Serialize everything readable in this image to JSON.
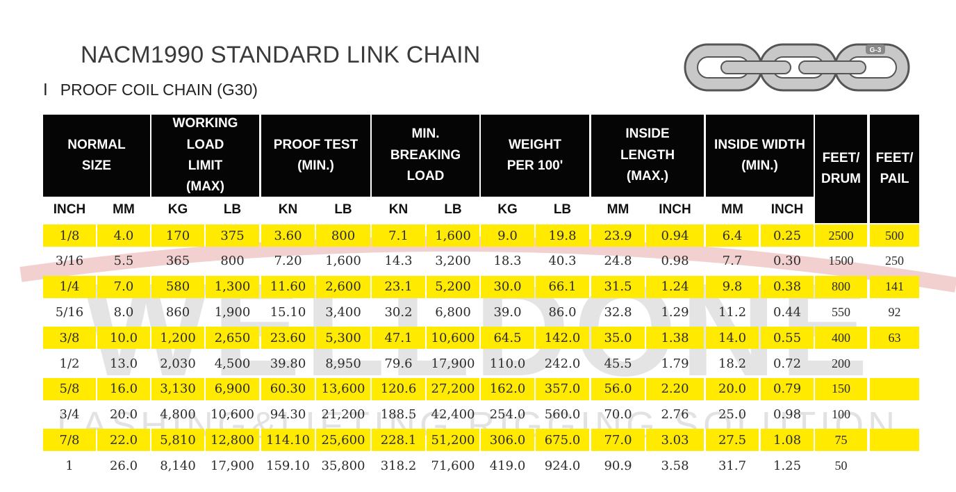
{
  "title": "NACM1990 STANDARD LINK CHAIN",
  "subtitle": {
    "numeral": "Ⅰ",
    "text": "PROOF COIL CHAIN (G30)"
  },
  "chain_badge": "G-3",
  "watermark": {
    "brand": "WELLDONE",
    "tagline": "LASHING&LIFTING RIGGING SOLUTION"
  },
  "headers": [
    {
      "label": "NORMAL\nSIZE"
    },
    {
      "label": "WORKING\nLOAD\nLIMIT\n(MAX)"
    },
    {
      "label": "PROOF TEST\n(MIN.)"
    },
    {
      "label": "MIN.\nBREAKING\nLOAD"
    },
    {
      "label": "WEIGHT\nPER  100'"
    },
    {
      "label": "INSIDE\nLENGTH\n(MAX.)"
    },
    {
      "label": "INSIDE WIDTH\n(MIN.)"
    },
    {
      "label": "FEET/\nDRUM"
    },
    {
      "label": "FEET/\nPAIL"
    }
  ],
  "units": [
    "INCH",
    "MM",
    "KG",
    "LB",
    "KN",
    "LB",
    "KN",
    "LB",
    "KG",
    "LB",
    "MM",
    "INCH",
    "MM",
    "INCH"
  ],
  "rows": [
    [
      "1/8",
      "4.0",
      "170",
      "375",
      "3.60",
      "800",
      "7.1",
      "1,600",
      "9.0",
      "19.8",
      "23.9",
      "0.94",
      "6.4",
      "0.25",
      "2500",
      "500"
    ],
    [
      "3/16",
      "5.5",
      "365",
      "800",
      "7.20",
      "1,600",
      "14.3",
      "3,200",
      "18.3",
      "40.3",
      "24.8",
      "0.98",
      "7.7",
      "0.30",
      "1500",
      "250"
    ],
    [
      "1/4",
      "7.0",
      "580",
      "1,300",
      "11.60",
      "2,600",
      "23.1",
      "5,200",
      "30.0",
      "66.1",
      "31.5",
      "1.24",
      "9.8",
      "0.38",
      "800",
      "141"
    ],
    [
      "5/16",
      "8.0",
      "860",
      "1,900",
      "15.10",
      "3,400",
      "30.2",
      "6,800",
      "39.0",
      "86.0",
      "32.8",
      "1.29",
      "11.2",
      "0.44",
      "550",
      "92"
    ],
    [
      "3/8",
      "10.0",
      "1,200",
      "2,650",
      "23.60",
      "5,300",
      "47.1",
      "10,600",
      "64.5",
      "142.0",
      "35.0",
      "1.38",
      "14.0",
      "0.55",
      "400",
      "63"
    ],
    [
      "1/2",
      "13.0",
      "2,030",
      "4,500",
      "39.80",
      "8,950",
      "79.6",
      "17,900",
      "110.0",
      "242.0",
      "45.5",
      "1.79",
      "18.2",
      "0.72",
      "200",
      ""
    ],
    [
      "5/8",
      "16.0",
      "3,130",
      "6,900",
      "60.30",
      "13,600",
      "120.6",
      "27,200",
      "162.0",
      "357.0",
      "56.0",
      "2.20",
      "20.0",
      "0.79",
      "150",
      ""
    ],
    [
      "3/4",
      "20.0",
      "4,800",
      "10,600",
      "94.30",
      "21,200",
      "188.5",
      "42,400",
      "254.0",
      "560.0",
      "70.0",
      "2.76",
      "25.0",
      "0.98",
      "100",
      ""
    ],
    [
      "7/8",
      "22.0",
      "5,810",
      "12,800",
      "114.10",
      "25,600",
      "228.1",
      "51,200",
      "306.0",
      "675.0",
      "77.0",
      "3.03",
      "27.5",
      "1.08",
      "75",
      ""
    ],
    [
      "1",
      "26.0",
      "8,140",
      "17,900",
      "159.10",
      "35,800",
      "318.2",
      "71,600",
      "419.0",
      "924.0",
      "90.9",
      "3.58",
      "31.7",
      "1.25",
      "50",
      ""
    ]
  ],
  "highlight_color": "#ffea00"
}
